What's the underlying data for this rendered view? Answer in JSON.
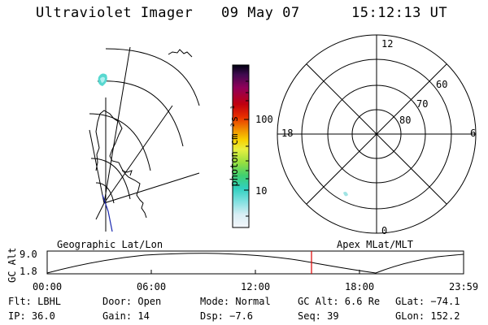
{
  "header": {
    "instrument": "Ultraviolet Imager",
    "date": "09 May 07",
    "time": "15:12:13 UT"
  },
  "colorbar": {
    "unit_label": "photon cm⁻²s⁻¹",
    "ticks": [
      "100",
      "10"
    ],
    "colors": [
      "#000000",
      "#3a0a4a",
      "#7a0060",
      "#a0002a",
      "#c80000",
      "#e83800",
      "#f07800",
      "#f8a800",
      "#f8d800",
      "#e8f038",
      "#a8e840",
      "#58d858",
      "#20c8a0",
      "#38d8d8",
      "#90e8e8",
      "#d0f0f0",
      "#f0f4f8"
    ]
  },
  "geo_map": {
    "label": "Geographic Lat/Lon"
  },
  "polar_plot": {
    "label": "Apex MLat/MLT",
    "mlt_labels": [
      "12",
      "18",
      "6",
      "0"
    ],
    "lat_labels": [
      "60",
      "70",
      "80"
    ]
  },
  "altitude_plot": {
    "ylabel": "GC Alt",
    "yticks": [
      "9.0",
      "1.8"
    ],
    "xticks": [
      "00:00",
      "06:00",
      "12:00",
      "18:00",
      "23:59"
    ],
    "marker_color": "#e00000"
  },
  "footer": {
    "filter": "Flt: LBHL",
    "door": "Door: Open",
    "mode": "Mode: Normal",
    "gc_alt": "GC Alt: 6.6 Re",
    "glat": "GLat: −74.1",
    "ip": "IP: 36.0",
    "gain": "Gain: 14",
    "dsp": "Dsp:   −7.6",
    "seq": "Seq: 39",
    "glon": "GLon: 152.2"
  }
}
